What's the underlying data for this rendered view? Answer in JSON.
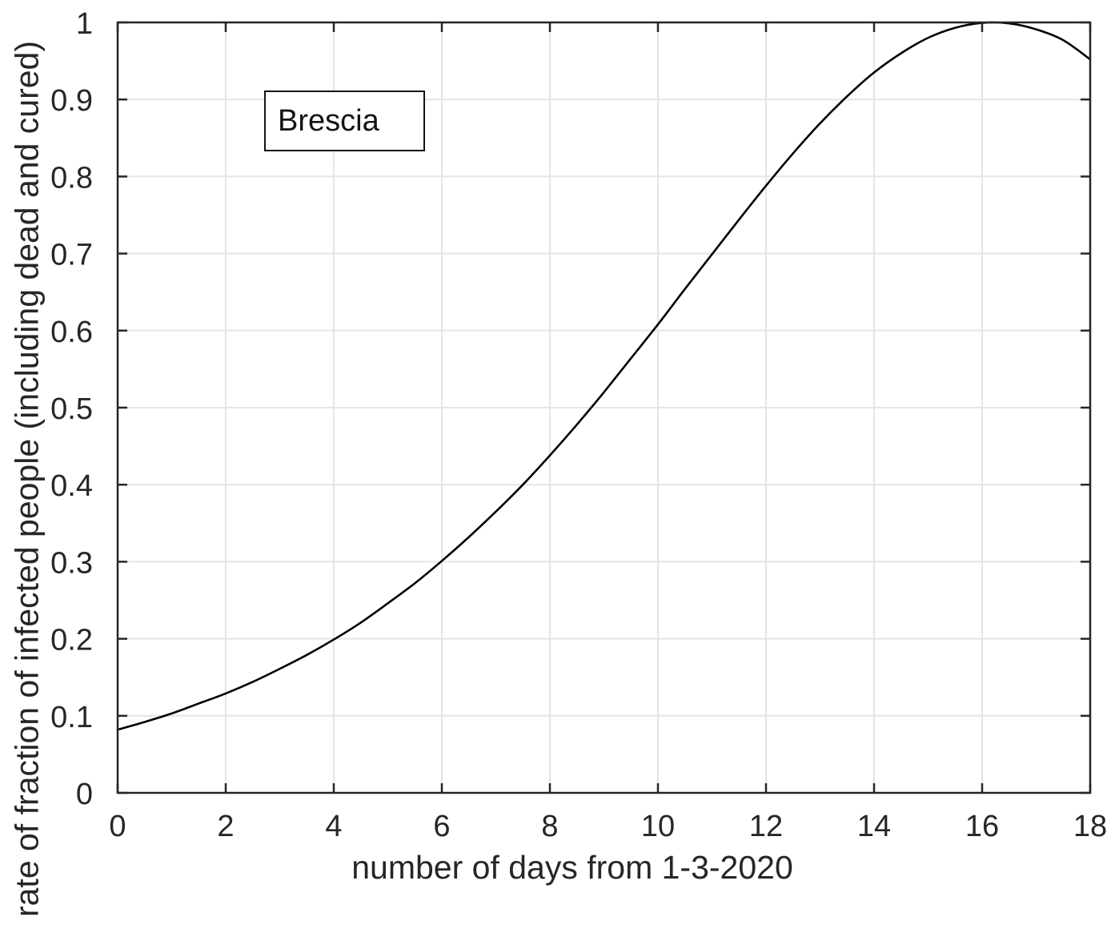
{
  "chart_data": {
    "type": "line",
    "title": "",
    "xlabel": "number of days from 1-3-2020",
    "ylabel": "rate of fraction of infected people (including dead and cured)",
    "legend": [
      "Brescia"
    ],
    "legend_position": "upper-left-inside",
    "xlim": [
      0,
      18
    ],
    "ylim": [
      0,
      1
    ],
    "xticks": [
      0,
      2,
      4,
      6,
      8,
      10,
      12,
      14,
      16,
      18
    ],
    "xtick_labels": [
      "0",
      "2",
      "4",
      "6",
      "8",
      "10",
      "12",
      "14",
      "16",
      "18"
    ],
    "yticks": [
      0,
      0.1,
      0.2,
      0.3,
      0.4,
      0.5,
      0.6,
      0.7,
      0.8,
      0.9,
      1
    ],
    "ytick_labels": [
      "0",
      "0.1",
      "0.2",
      "0.3",
      "0.4",
      "0.5",
      "0.6",
      "0.7",
      "0.8",
      "0.9",
      "1"
    ],
    "grid": true,
    "box": true,
    "colors": {
      "line": "#000000",
      "axis": "#262626",
      "grid": "#e5e5e5",
      "text": "#262626",
      "legend_border": "#141414",
      "background": "#ffffff"
    },
    "series": [
      {
        "name": "Brescia",
        "x": [
          0,
          0.5,
          1,
          1.5,
          2,
          2.5,
          3,
          3.5,
          4,
          4.5,
          5,
          5.5,
          6,
          6.5,
          7,
          7.5,
          8,
          8.5,
          9,
          9.5,
          10,
          10.5,
          11,
          11.5,
          12,
          12.5,
          13,
          13.5,
          14,
          14.5,
          15,
          15.5,
          16,
          16.5,
          17,
          17.5,
          18
        ],
        "y": [
          0.082,
          0.092,
          0.103,
          0.116,
          0.129,
          0.144,
          0.161,
          0.179,
          0.199,
          0.221,
          0.246,
          0.272,
          0.301,
          0.332,
          0.365,
          0.4,
          0.438,
          0.478,
          0.52,
          0.564,
          0.608,
          0.654,
          0.699,
          0.744,
          0.788,
          0.83,
          0.869,
          0.904,
          0.935,
          0.96,
          0.98,
          0.993,
          0.9994,
          0.9988,
          0.991,
          0.977,
          0.952
        ]
      }
    ]
  }
}
